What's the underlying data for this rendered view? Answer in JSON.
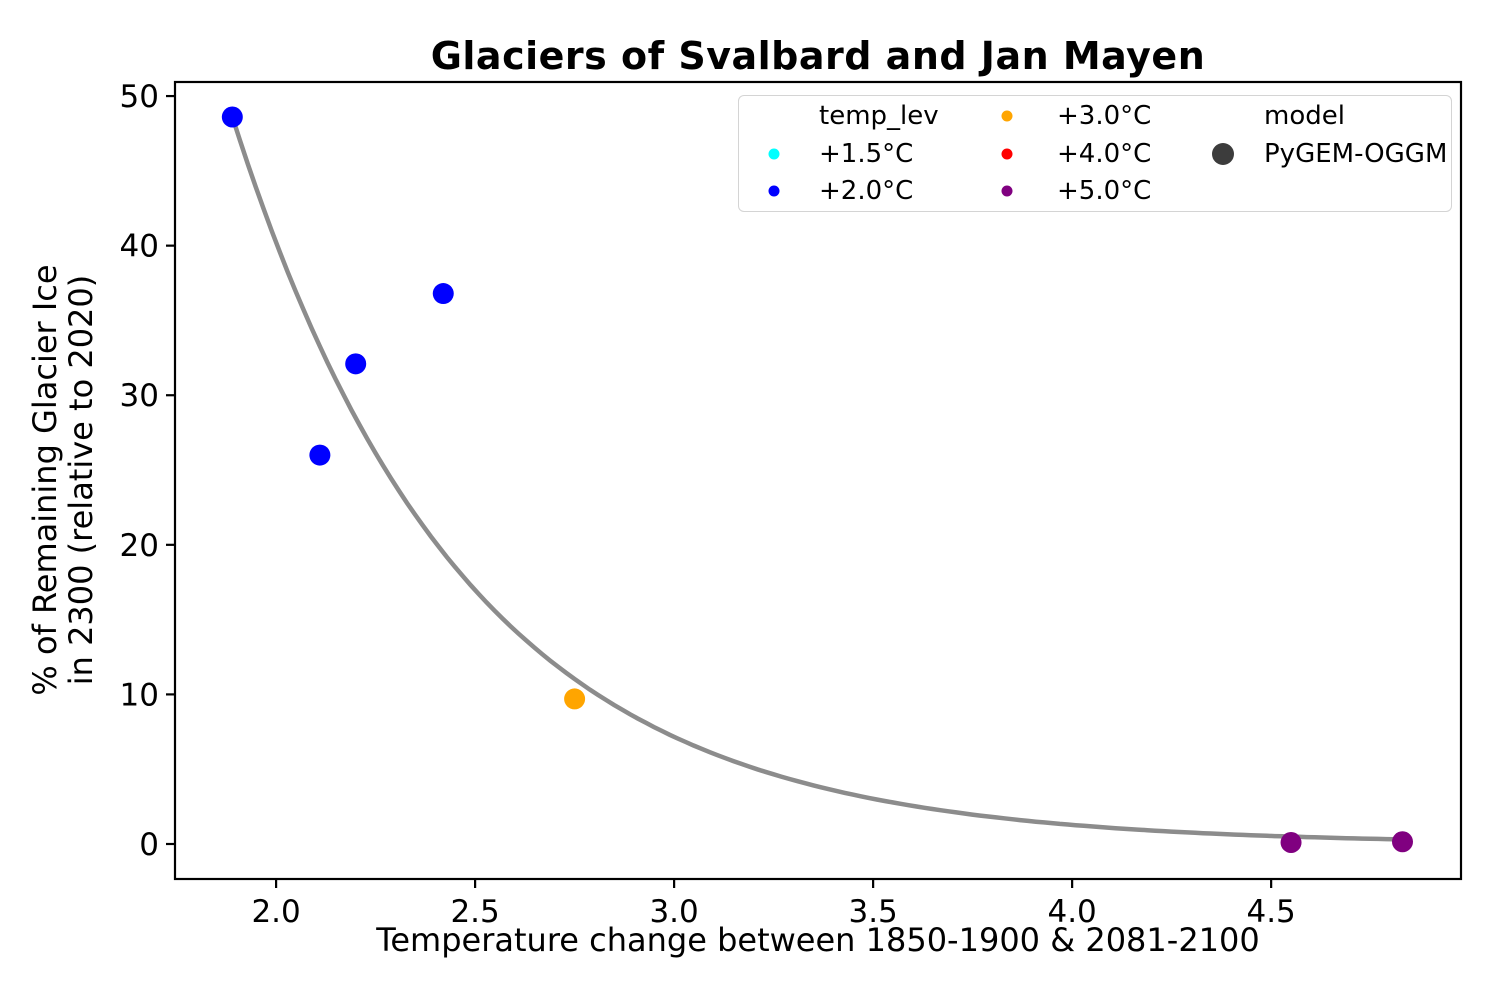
{
  "title": "Glaciers of Svalbard and Jan Mayen",
  "axes": {
    "xlabel": "Temperature change between 1850-1900 & 2081-2100",
    "ylabel_line1": "% of Remaining Glacier Ice",
    "ylabel_line2": "in 2300 (relative to 2020)"
  },
  "legend": {
    "temp_header": "temp_lev",
    "model_header": "model",
    "temp_entries": [
      {
        "label": "+1.5°C",
        "color": "#00FFFF"
      },
      {
        "label": "+2.0°C",
        "color": "#0000FF"
      },
      {
        "label": "+3.0°C",
        "color": "#FFA500"
      },
      {
        "label": "+4.0°C",
        "color": "#FF0000"
      },
      {
        "label": "+5.0°C",
        "color": "#800080"
      }
    ],
    "model_entries": [
      {
        "label": "PyGEM-OGGM",
        "color": "#3C3C3C"
      }
    ]
  },
  "chart_data": {
    "type": "scatter",
    "title": "Glaciers of Svalbard and Jan Mayen",
    "xlabel": "Temperature change between 1850-1900 & 2081-2100",
    "ylabel": "% of Remaining Glacier Ice in 2300 (relative to 2020)",
    "xlim": [
      1.746,
      4.977
    ],
    "ylim": [
      -2.34,
      50.94
    ],
    "x_ticks": [
      2.0,
      2.5,
      3.0,
      3.5,
      4.0,
      4.5
    ],
    "x_tick_labels": [
      "2.0",
      "2.5",
      "3.0",
      "3.5",
      "4.0",
      "4.5"
    ],
    "y_ticks": [
      0,
      10,
      20,
      30,
      40,
      50
    ],
    "y_tick_labels": [
      "0",
      "10",
      "20",
      "30",
      "40",
      "50"
    ],
    "grid": false,
    "legend_position": "upper right inside",
    "series": [
      {
        "name": "+2.0°C",
        "color": "#0000FF",
        "points": [
          [
            1.89,
            48.6
          ],
          [
            2.11,
            26.0
          ],
          [
            2.2,
            32.1
          ],
          [
            2.42,
            36.8
          ]
        ]
      },
      {
        "name": "+3.0°C",
        "color": "#FFA500",
        "points": [
          [
            2.75,
            9.7
          ]
        ]
      },
      {
        "name": "+5.0°C",
        "color": "#800080",
        "points": [
          [
            4.55,
            0.1
          ],
          [
            4.83,
            0.15
          ]
        ]
      }
    ],
    "trend": {
      "type": "exponential",
      "formula": "y = a * exp(b * x)",
      "a": 1266.8,
      "b": -1.725,
      "x_start": 1.889,
      "x_end": 4.835,
      "color": "#8C8C8C",
      "stroke_width": 4.5
    },
    "marker_radius": 10.5
  },
  "colors": {
    "background": "#FFFFFF",
    "spine": "#000000",
    "tick_label": "#000000",
    "legend_border": "#D4D4D4",
    "trend": "#8C8C8C",
    "model_marker": "#3C3C3C"
  }
}
